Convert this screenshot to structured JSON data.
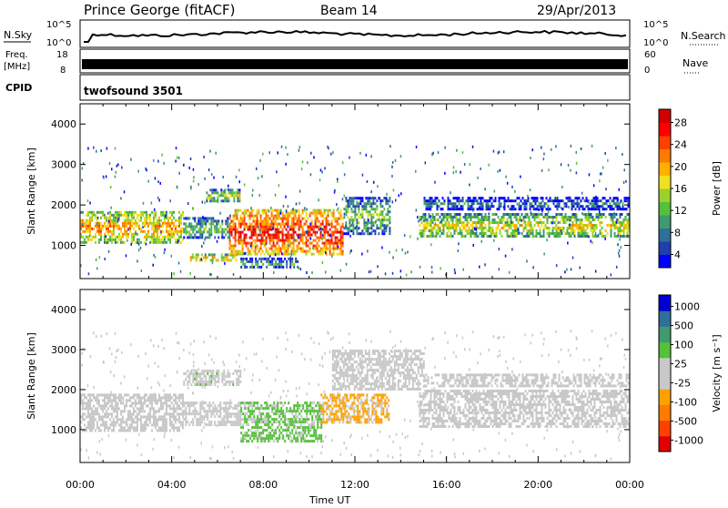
{
  "header": {
    "station": "Prince George (fitACF)",
    "beam": "Beam 14",
    "date": "29/Apr/2013"
  },
  "top_panels": {
    "nsky_label": "N.Sky",
    "nsky_ticks": [
      "10^5",
      "10^0"
    ],
    "nsearch_label": "N.Search",
    "nsearch_ticks": [
      "10^5",
      "10^0"
    ],
    "freq_label": "Freq.",
    "freq_unit": "[MHz]",
    "freq_ticks": [
      "18",
      "8"
    ],
    "nave_label": "Nave",
    "nave_ticks": [
      "60",
      "0"
    ],
    "cpid_label": "CPID",
    "cpid_value": "twofsound 3501"
  },
  "chart_data": [
    {
      "type": "heatmap",
      "title": "",
      "xlabel": "Time UT",
      "ylabel": "Slant Range [km]",
      "xlim": [
        0,
        24
      ],
      "ylim": [
        180,
        4500
      ],
      "x_ticks": [
        "00:00",
        "04:00",
        "08:00",
        "12:00",
        "16:00",
        "20:00",
        "00:00"
      ],
      "y_ticks": [
        "1000",
        "2000",
        "3000",
        "4000"
      ],
      "colorbar": {
        "label": "Power [dB]",
        "ticks": [
          "28",
          "24",
          "20",
          "16",
          "12",
          "8",
          "4"
        ],
        "range": [
          0,
          32
        ],
        "colors": [
          "#0000ff",
          "#1f3fb0",
          "#2f6f9a",
          "#3f9a6f",
          "#55c03a",
          "#9ad22a",
          "#f0e020",
          "#ffb000",
          "#ff7a00",
          "#ff4000",
          "#ff0000",
          "#d00000"
        ]
      },
      "bands": [
        {
          "t0": 0.0,
          "t1": 4.5,
          "r0": 1100,
          "r1": 1850,
          "value": 22
        },
        {
          "t0": 4.5,
          "t1": 6.5,
          "r0": 1200,
          "r1": 1700,
          "value": 14
        },
        {
          "t0": 4.8,
          "t1": 6.8,
          "r0": 600,
          "r1": 800,
          "value": 20
        },
        {
          "t0": 5.5,
          "t1": 7.0,
          "r0": 2100,
          "r1": 2400,
          "value": 16
        },
        {
          "t0": 6.5,
          "t1": 11.5,
          "r0": 800,
          "r1": 1900,
          "value": 28
        },
        {
          "t0": 7.0,
          "t1": 9.5,
          "r0": 450,
          "r1": 700,
          "value": 12
        },
        {
          "t0": 11.5,
          "t1": 13.5,
          "r0": 1300,
          "r1": 2200,
          "value": 14
        },
        {
          "t0": 14.8,
          "t1": 24.0,
          "r0": 1200,
          "r1": 1800,
          "value": 18
        },
        {
          "t0": 15.0,
          "t1": 24.0,
          "r0": 1900,
          "r1": 2200,
          "value": 8
        }
      ]
    },
    {
      "type": "heatmap",
      "title": "",
      "xlabel": "Time UT",
      "ylabel": "Slant Range [km]",
      "xlim": [
        0,
        24
      ],
      "ylim": [
        180,
        4500
      ],
      "x_ticks": [
        "00:00",
        "04:00",
        "08:00",
        "12:00",
        "16:00",
        "20:00",
        "00:00"
      ],
      "y_ticks": [
        "1000",
        "2000",
        "3000",
        "4000"
      ],
      "colorbar": {
        "label": "Velocity [m s⁻¹]",
        "ticks": [
          "1000",
          "500",
          "100",
          "25",
          "-25",
          "-100",
          "-500",
          "-1000"
        ],
        "range": [
          -1200,
          1200
        ],
        "colors": [
          "#e00000",
          "#ff4000",
          "#ff7a00",
          "#ffa000",
          "#c8c8c8",
          "#c8c8c8",
          "#55c03a",
          "#3f9a6f",
          "#2f6f9a",
          "#0000d0"
        ]
      },
      "bands": [
        {
          "t0": 0.0,
          "t1": 4.5,
          "r0": 1000,
          "r1": 1900,
          "value": 0
        },
        {
          "t0": 4.5,
          "t1": 7.0,
          "r0": 1100,
          "r1": 1700,
          "value": 0
        },
        {
          "t0": 4.5,
          "t1": 7.0,
          "r0": 2100,
          "r1": 2500,
          "value": 150
        },
        {
          "t0": 7.0,
          "t1": 10.5,
          "r0": 700,
          "r1": 1700,
          "value": 300
        },
        {
          "t0": 10.5,
          "t1": 13.5,
          "r0": 1200,
          "r1": 1900,
          "value": -300
        },
        {
          "t0": 11.0,
          "t1": 15.0,
          "r0": 2000,
          "r1": 3000,
          "value": 0
        },
        {
          "t0": 14.8,
          "t1": 24.0,
          "r0": 1100,
          "r1": 2000,
          "value": 0
        },
        {
          "t0": 15.0,
          "t1": 24.0,
          "r0": 2100,
          "r1": 2400,
          "value": 0
        }
      ]
    }
  ]
}
